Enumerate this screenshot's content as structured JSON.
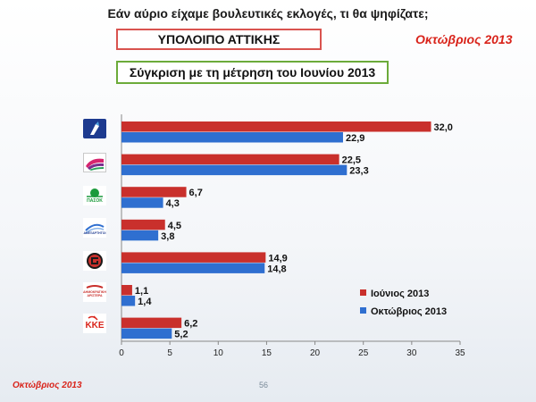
{
  "header": {
    "question": "Εάν αύριο είχαμε βουλευτικές εκλογές, τι θα ψηφίζατε;",
    "region": "ΥΠΟΛΟΙΠΟ ΑΤΤΙΚΗΣ",
    "date": "Οκτώβριος 2013",
    "comparison": "Σύγκριση με τη μέτρηση του Ιουνίου 2013"
  },
  "footer": {
    "date": "Οκτώβριος 2013",
    "page_number": "56"
  },
  "party_logos": [
    {
      "name": "nd-logo"
    },
    {
      "name": "syriza-logo"
    },
    {
      "name": "pasok-logo",
      "text": "ΠΑΣΟΚ"
    },
    {
      "name": "anel-logo",
      "text": "ΑΝΕΞΑΡΤΗΤΟΙ"
    },
    {
      "name": "golden-dawn-logo"
    },
    {
      "name": "dimar-logo",
      "text": "ΔΗΜΟΚΡΑΤΙΚΗ ΑΡΙΣΤΕΡΑ"
    },
    {
      "name": "kke-logo",
      "text": "ΚΚΕ"
    }
  ],
  "colors": {
    "june": "#c9302c",
    "october": "#2f6fd0",
    "axis": "#888888"
  },
  "chart_data": {
    "type": "bar",
    "orientation": "horizontal",
    "categories": [
      "ΝΔ",
      "ΣΥΡΙΖΑ",
      "ΠΑΣΟΚ",
      "ΑΝΕΛ",
      "Χρυσή Αυγή",
      "ΔΗΜΑΡ",
      "ΚΚΕ"
    ],
    "series": [
      {
        "name": "Ιούνιος 2013",
        "values": [
          32.0,
          22.5,
          6.7,
          4.5,
          14.9,
          1.1,
          6.2
        ],
        "labels": [
          "32,0",
          "22,5",
          "6,7",
          "4,5",
          "14,9",
          "1,1",
          "6,2"
        ]
      },
      {
        "name": "Οκτώβριος 2013",
        "values": [
          22.9,
          23.3,
          4.3,
          3.8,
          14.8,
          1.4,
          5.2
        ],
        "labels": [
          "22,9",
          "23,3",
          "4,3",
          "3,8",
          "14,8",
          "1,4",
          "5,2"
        ]
      }
    ],
    "xlim": [
      0,
      35
    ],
    "xticks": [
      0,
      5,
      10,
      15,
      20,
      25,
      30,
      35
    ],
    "legend_position": "bottom-right"
  }
}
